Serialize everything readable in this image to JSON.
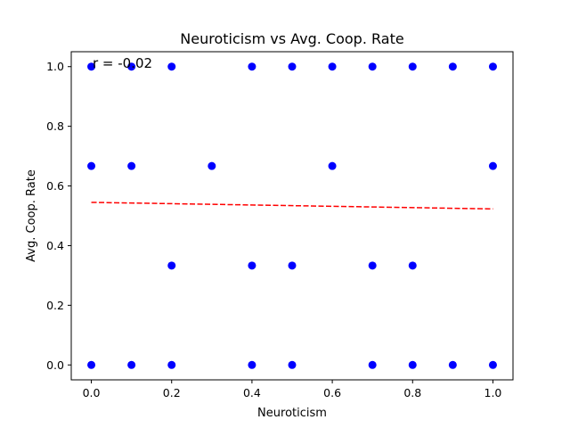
{
  "chart_data": {
    "type": "scatter",
    "title": "Neuroticism vs Avg. Coop. Rate",
    "xlabel": "Neuroticism",
    "ylabel": "Avg. Coop. Rate",
    "xlim": [
      -0.05,
      1.05
    ],
    "ylim": [
      -0.05,
      1.05
    ],
    "xticks": [
      0.0,
      0.2,
      0.4,
      0.6,
      0.8,
      1.0
    ],
    "xtick_labels": [
      "0.0",
      "0.2",
      "0.4",
      "0.6",
      "0.8",
      "1.0"
    ],
    "yticks": [
      0.0,
      0.2,
      0.4,
      0.6,
      0.8,
      1.0
    ],
    "ytick_labels": [
      "0.0",
      "0.2",
      "0.4",
      "0.6",
      "0.8",
      "1.0"
    ],
    "grid": false,
    "point_color": "#0000ff",
    "points": [
      {
        "x": 0.0,
        "y": 1.0
      },
      {
        "x": 0.1,
        "y": 1.0
      },
      {
        "x": 0.2,
        "y": 1.0
      },
      {
        "x": 0.4,
        "y": 1.0
      },
      {
        "x": 0.5,
        "y": 1.0
      },
      {
        "x": 0.6,
        "y": 1.0
      },
      {
        "x": 0.7,
        "y": 1.0
      },
      {
        "x": 0.8,
        "y": 1.0
      },
      {
        "x": 0.9,
        "y": 1.0
      },
      {
        "x": 1.0,
        "y": 1.0
      },
      {
        "x": 0.0,
        "y": 0.667
      },
      {
        "x": 0.1,
        "y": 0.667
      },
      {
        "x": 0.3,
        "y": 0.667
      },
      {
        "x": 0.6,
        "y": 0.667
      },
      {
        "x": 1.0,
        "y": 0.667
      },
      {
        "x": 0.2,
        "y": 0.333
      },
      {
        "x": 0.4,
        "y": 0.333
      },
      {
        "x": 0.5,
        "y": 0.333
      },
      {
        "x": 0.7,
        "y": 0.333
      },
      {
        "x": 0.8,
        "y": 0.333
      },
      {
        "x": 0.0,
        "y": 0.0
      },
      {
        "x": 0.1,
        "y": 0.0
      },
      {
        "x": 0.2,
        "y": 0.0
      },
      {
        "x": 0.4,
        "y": 0.0
      },
      {
        "x": 0.5,
        "y": 0.0
      },
      {
        "x": 0.7,
        "y": 0.0
      },
      {
        "x": 0.8,
        "y": 0.0
      },
      {
        "x": 0.9,
        "y": 0.0
      },
      {
        "x": 1.0,
        "y": 0.0
      }
    ],
    "trendline": {
      "color": "#ff0000",
      "style": "dashed",
      "x": [
        0.0,
        1.0
      ],
      "y": [
        0.545,
        0.523
      ]
    },
    "annotation": "r = -0.02"
  }
}
